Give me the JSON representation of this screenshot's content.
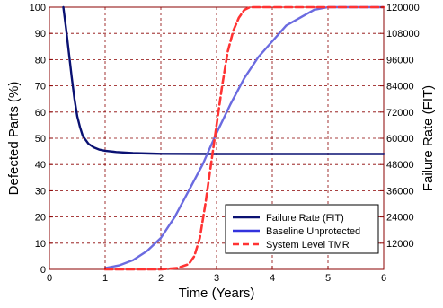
{
  "chart_data": {
    "type": "line",
    "xlabel": "Time (Years)",
    "ylabel": "Defected Parts (%)",
    "y2label": "Failure Rate (FIT)",
    "xlim": [
      0,
      6
    ],
    "ylim": [
      0,
      100
    ],
    "y2lim": [
      0,
      120000
    ],
    "x_ticks": [
      "0",
      "1",
      "2",
      "3",
      "4",
      "5",
      "6"
    ],
    "y_ticks": [
      "0",
      "10",
      "20",
      "30",
      "40",
      "50",
      "60",
      "70",
      "80",
      "90",
      "100"
    ],
    "y2_ticks": [
      "0",
      "12000",
      "24000",
      "36000",
      "48000",
      "60000",
      "72000",
      "84000",
      "96000",
      "108000",
      "120000"
    ],
    "grid": true,
    "legend_position": "lower-right",
    "series": [
      {
        "name": "Failure Rate (FIT)",
        "axis": "y2",
        "color": "#0a1172",
        "dash": "solid",
        "x": [
          0.25,
          0.3,
          0.35,
          0.4,
          0.45,
          0.5,
          0.55,
          0.6,
          0.7,
          0.8,
          0.9,
          1.0,
          1.2,
          1.5,
          1.8,
          2.0,
          3.0,
          4.0,
          5.0,
          6.0
        ],
        "y": [
          120000,
          110000,
          99000,
          88000,
          78000,
          70000,
          65000,
          61000,
          57500,
          55800,
          54800,
          54300,
          53700,
          53200,
          53000,
          52900,
          52800,
          52800,
          52800,
          52800
        ]
      },
      {
        "name": "Baseline Unprotected",
        "axis": "y",
        "color": "#6b6be0",
        "dash": "solid",
        "x": [
          1.0,
          1.25,
          1.5,
          1.75,
          2.0,
          2.25,
          2.5,
          2.75,
          3.0,
          3.25,
          3.5,
          3.75,
          4.0,
          4.25,
          4.5,
          4.75,
          5.0,
          6.0
        ],
        "y": [
          0.5,
          1.5,
          3.5,
          7,
          12,
          20,
          30,
          40,
          52,
          63,
          73,
          81,
          87,
          93,
          96,
          99,
          100,
          100
        ]
      },
      {
        "name": "System Level TMR",
        "axis": "y",
        "color": "#ff3333",
        "dash": "dashed",
        "x": [
          1.0,
          2.0,
          2.3,
          2.5,
          2.6,
          2.7,
          2.8,
          2.9,
          3.0,
          3.1,
          3.2,
          3.3,
          3.4,
          3.5,
          3.6,
          3.7,
          6.0
        ],
        "y": [
          0,
          0,
          0.5,
          2,
          5,
          12,
          25,
          40,
          55,
          70,
          83,
          91,
          96,
          99,
          100,
          100,
          100
        ]
      }
    ]
  }
}
